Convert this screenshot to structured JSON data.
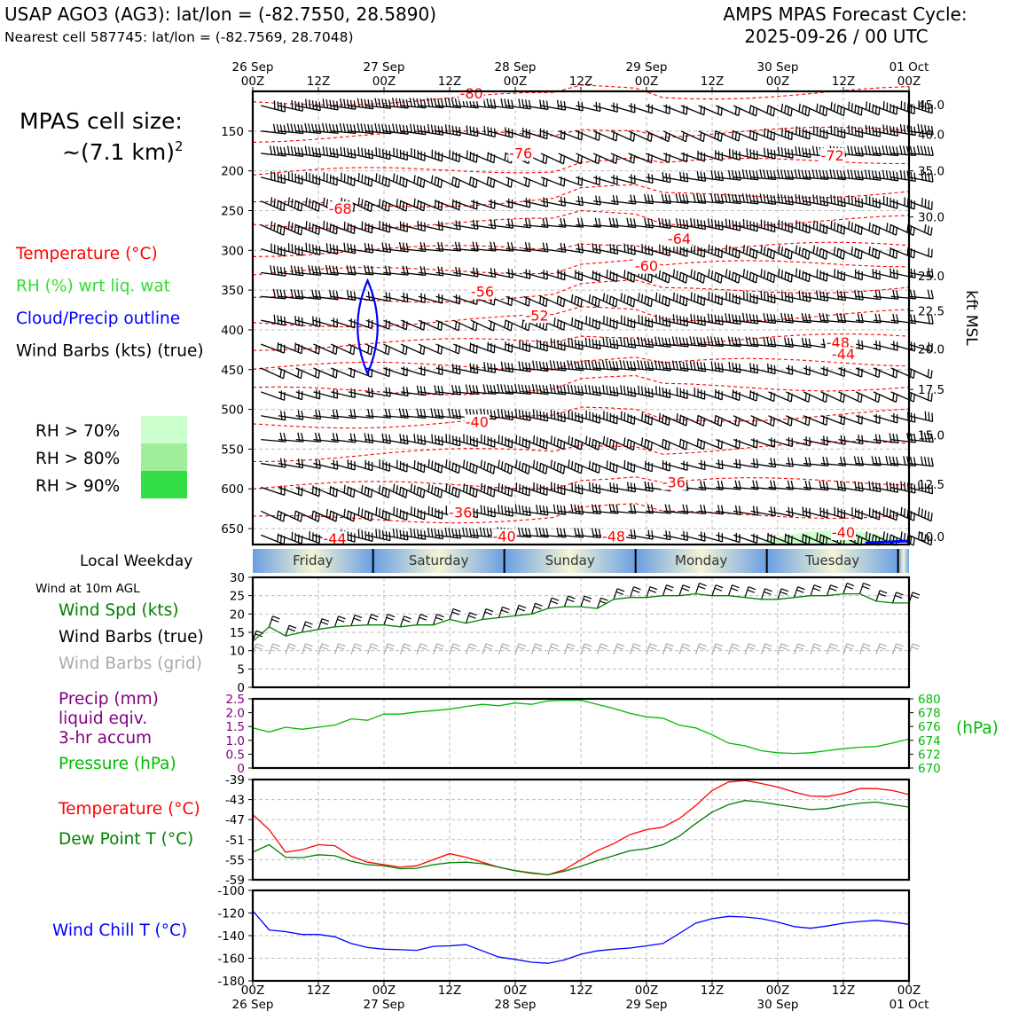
{
  "header": {
    "station_line": "USAP AGO3 (AG3): lat/lon = (-82.7550, 28.5890)",
    "cell_line": "Nearest cell 587745: lat/lon = (-82.7569, 28.7048)",
    "cycle_title": "AMPS MPAS Forecast Cycle:",
    "cycle_time": "2025-09-26 / 00 UTC"
  },
  "left_panel": {
    "cell_size_label": "MPAS cell size:",
    "cell_size_value": "~(7.1 km)",
    "cell_size_exp": "2",
    "legend": [
      {
        "text": "Temperature (°C)",
        "color": "#ff0000"
      },
      {
        "text": "RH (%) wrt liq. wat",
        "color": "#33dd33"
      },
      {
        "text": "Cloud/Precip outline",
        "color": "#0000ff"
      },
      {
        "text": "Wind Barbs (kts) (true)",
        "color": "#000000"
      }
    ],
    "rh_legend": [
      {
        "text": "RH > 70%",
        "color": "#ccffcc"
      },
      {
        "text": "RH > 80%",
        "color": "#a0ee9a"
      },
      {
        "text": "RH > 90%",
        "color": "#33dd44"
      }
    ],
    "weekday_label": "Local Weekday",
    "wind10m_title": "Wind at 10m AGL",
    "wind_legend": [
      {
        "text": "Wind Spd (kts)",
        "color": "#008000"
      },
      {
        "text": "Wind Barbs (true)",
        "color": "#000000"
      },
      {
        "text": "Wind Barbs (grid)",
        "color": "#aaaaaa"
      }
    ],
    "precip_legend": [
      {
        "text": "Precip (mm)",
        "color": "#800080"
      },
      {
        "text": "liquid eqiv.",
        "color": "#800080"
      },
      {
        "text": "3-hr accum",
        "color": "#800080"
      },
      {
        "text": "Pressure (hPa)",
        "color": "#00bb00"
      }
    ],
    "temp_legend": [
      {
        "text": "Temperature (°C)",
        "color": "#ff0000"
      },
      {
        "text": "Dew Point T (°C)",
        "color": "#008000"
      }
    ],
    "chill_legend": [
      {
        "text": "Wind Chill T (°C)",
        "color": "#0000ff"
      }
    ]
  },
  "chart_data": [
    {
      "type": "time-height cross section",
      "x_range_hours": [
        0,
        120
      ],
      "x_ticks": [
        {
          "h": 0,
          "l1": "26 Sep",
          "l2": "00Z"
        },
        {
          "h": 12,
          "l1": "",
          "l2": "12Z"
        },
        {
          "h": 24,
          "l1": "27 Sep",
          "l2": "00Z"
        },
        {
          "h": 36,
          "l1": "",
          "l2": "12Z"
        },
        {
          "h": 48,
          "l1": "28 Sep",
          "l2": "00Z"
        },
        {
          "h": 60,
          "l1": "",
          "l2": "12Z"
        },
        {
          "h": 72,
          "l1": "29 Sep",
          "l2": "00Z"
        },
        {
          "h": 84,
          "l1": "",
          "l2": "12Z"
        },
        {
          "h": 96,
          "l1": "30 Sep",
          "l2": "00Z"
        },
        {
          "h": 108,
          "l1": "",
          "l2": "12Z"
        },
        {
          "h": 120,
          "l1": "01 Oct",
          "l2": "00Z"
        }
      ],
      "y_range_hpa": [
        100,
        670
      ],
      "pressure_ticks": [
        "150",
        "200",
        "250",
        "300",
        "350",
        "400",
        "450",
        "500",
        "550",
        "600",
        "650"
      ],
      "height_axis_label": "kft MSL",
      "height_ticks": [
        {
          "label": "45.0",
          "p": 117
        },
        {
          "label": "40.0",
          "p": 154
        },
        {
          "label": "35.0",
          "p": 200
        },
        {
          "label": "30.0",
          "p": 258
        },
        {
          "label": "25.0",
          "p": 332
        },
        {
          "label": "22.5",
          "p": 376
        },
        {
          "label": "20.0",
          "p": 424
        },
        {
          "label": "17.5",
          "p": 475
        },
        {
          "label": "15.0",
          "p": 532
        },
        {
          "label": "12.5",
          "p": 594
        },
        {
          "label": "10.0",
          "p": 660
        }
      ],
      "temperature_contours_degC": [
        {
          "label": "-80",
          "h": 40,
          "p": 108,
          "color": "#ff0000"
        },
        {
          "label": "-76",
          "h": 49,
          "p": 183,
          "color": "#ff0000"
        },
        {
          "label": "-72",
          "h": 106,
          "p": 186,
          "color": "#ff0000"
        },
        {
          "label": "-68",
          "h": 16,
          "p": 253,
          "color": "#ff0000"
        },
        {
          "label": "-64",
          "h": 78,
          "p": 291,
          "color": "#ff0000"
        },
        {
          "label": "-60",
          "h": 72,
          "p": 325,
          "color": "#ff0000"
        },
        {
          "label": "-56",
          "h": 42,
          "p": 357,
          "color": "#ff0000"
        },
        {
          "label": "-52",
          "h": 52,
          "p": 387,
          "color": "#ff0000"
        },
        {
          "label": "-48",
          "h": 107,
          "p": 421,
          "color": "#ff0000"
        },
        {
          "label": "-44",
          "h": 108,
          "p": 436,
          "color": "#ff0000"
        },
        {
          "label": "-40",
          "h": 41,
          "p": 521,
          "color": "#ff0000"
        },
        {
          "label": "-36",
          "h": 38,
          "p": 635,
          "color": "#ff0000"
        },
        {
          "label": "-36",
          "h": 77,
          "p": 597,
          "color": "#ff0000"
        },
        {
          "label": "-44",
          "h": 15,
          "p": 668,
          "color": "#ff0000"
        },
        {
          "label": "-40",
          "h": 46,
          "p": 665,
          "color": "#ff0000"
        },
        {
          "label": "-48",
          "h": 66,
          "p": 665,
          "color": "#ff0000"
        },
        {
          "label": "-40",
          "h": 108,
          "p": 660,
          "color": "#ff0000"
        }
      ],
      "cloud_outline": {
        "h_center": 21,
        "p_top": 338,
        "p_bottom": 455,
        "color": "#0000ff"
      }
    },
    {
      "type": "weekday strip",
      "days": [
        {
          "label": "Friday",
          "h_start": 0,
          "h_end": 22
        },
        {
          "label": "Saturday",
          "h_start": 22,
          "h_end": 46
        },
        {
          "label": "Sunday",
          "h_start": 46,
          "h_end": 70
        },
        {
          "label": "Monday",
          "h_start": 70,
          "h_end": 94
        },
        {
          "label": "Tuesday",
          "h_start": 94,
          "h_end": 118
        },
        {
          "label": "",
          "h_start": 118,
          "h_end": 120
        }
      ]
    },
    {
      "type": "line",
      "name": "wind10m",
      "ylim": [
        0,
        30
      ],
      "yticks": [
        "0",
        "5",
        "10",
        "15",
        "20",
        "25",
        "30"
      ],
      "x": [
        0,
        3,
        6,
        9,
        12,
        15,
        18,
        21,
        24,
        27,
        30,
        33,
        36,
        39,
        42,
        45,
        48,
        51,
        54,
        57,
        60,
        63,
        66,
        69,
        72,
        75,
        78,
        81,
        84,
        87,
        90,
        93,
        96,
        99,
        102,
        105,
        108,
        111,
        114,
        117,
        120
      ],
      "series": [
        {
          "name": "Wind Spd (kts)",
          "color": "#008000",
          "values": [
            12.5,
            16.5,
            14,
            15,
            15.8,
            16.5,
            16.8,
            17,
            17,
            16.5,
            17,
            17,
            18.5,
            17.5,
            18.5,
            19,
            19.5,
            20,
            21.5,
            22,
            22,
            21.5,
            24,
            24.5,
            24.5,
            25,
            25,
            25.5,
            25,
            25,
            24.5,
            24,
            24,
            24.5,
            25,
            25,
            25.5,
            25.5,
            23.5,
            23,
            23
          ]
        }
      ]
    },
    {
      "type": "line",
      "name": "precip_pressure",
      "y_left": {
        "label": "Precip (mm)",
        "lim": [
          0,
          2.5
        ],
        "ticks": [
          "0",
          "0.5",
          "1.0",
          "1.5",
          "2.0",
          "2.5"
        ]
      },
      "y_right": {
        "label": "(hPa)",
        "lim": [
          670,
          680
        ],
        "ticks": [
          "670",
          "672",
          "674",
          "676",
          "678",
          "680"
        ]
      },
      "x": [
        0,
        3,
        6,
        9,
        12,
        15,
        18,
        21,
        24,
        27,
        30,
        33,
        36,
        39,
        42,
        45,
        48,
        51,
        54,
        57,
        60,
        63,
        66,
        69,
        72,
        75,
        78,
        81,
        84,
        87,
        90,
        93,
        96,
        99,
        102,
        105,
        108,
        111,
        114,
        117,
        120
      ],
      "series": [
        {
          "name": "Pressure (hPa)",
          "color": "#00bb00",
          "values": [
            675.8,
            675.2,
            675.9,
            675.6,
            675.9,
            676.2,
            677.1,
            676.9,
            677.8,
            677.8,
            678.1,
            678.3,
            678.5,
            678.9,
            679.2,
            679,
            679.4,
            679.2,
            679.7,
            679.8,
            679.8,
            679.2,
            678.6,
            677.9,
            677.4,
            677.2,
            676.2,
            675.8,
            674.8,
            673.6,
            673.2,
            672.5,
            672.2,
            672.1,
            672.2,
            672.5,
            672.8,
            673,
            673.1,
            673.6,
            674.2
          ]
        }
      ]
    },
    {
      "type": "line",
      "name": "temperature_dewpoint",
      "ylim": [
        -59,
        -39
      ],
      "yticks": [
        "-59",
        "-55",
        "-51",
        "-47",
        "-43",
        "-39"
      ],
      "x": [
        0,
        3,
        6,
        9,
        12,
        15,
        18,
        21,
        24,
        27,
        30,
        33,
        36,
        39,
        42,
        45,
        48,
        51,
        54,
        57,
        60,
        63,
        66,
        69,
        72,
        75,
        78,
        81,
        84,
        87,
        90,
        93,
        96,
        99,
        102,
        105,
        108,
        111,
        114,
        117,
        120
      ],
      "series": [
        {
          "name": "Temperature (°C)",
          "color": "#ff0000",
          "values": [
            -46,
            -49,
            -53.5,
            -53,
            -52,
            -52.2,
            -54.3,
            -55.5,
            -56,
            -56.5,
            -56.2,
            -55,
            -53.8,
            -54.5,
            -55.5,
            -56.5,
            -57.2,
            -57.7,
            -58,
            -57,
            -55,
            -53.2,
            -51.8,
            -50,
            -49,
            -48.5,
            -46.8,
            -44.2,
            -41.2,
            -39.5,
            -39.2,
            -39.8,
            -40.5,
            -41.5,
            -42.3,
            -42.4,
            -41.8,
            -40.8,
            -40.8,
            -41.2,
            -42
          ]
        },
        {
          "name": "Dew Point T (°C)",
          "color": "#008000",
          "values": [
            -53.5,
            -52,
            -54.5,
            -54.6,
            -54,
            -54.2,
            -55.3,
            -56,
            -56.2,
            -56.8,
            -56.7,
            -56,
            -55.6,
            -55.5,
            -55.8,
            -56.5,
            -57.2,
            -57.6,
            -58,
            -57.3,
            -56.3,
            -55.2,
            -54.2,
            -53.2,
            -52.8,
            -52,
            -50.3,
            -47.8,
            -45.5,
            -44,
            -43.2,
            -43.5,
            -44,
            -44.5,
            -45,
            -44.8,
            -44.2,
            -43.7,
            -43.5,
            -44,
            -44.5
          ]
        }
      ]
    },
    {
      "type": "line",
      "name": "wind_chill",
      "ylim": [
        -180,
        -100
      ],
      "yticks": [
        "-180",
        "-160",
        "-140",
        "-120",
        "-100"
      ],
      "x_ticks_bottom": [
        {
          "h": 0,
          "l1": "00Z",
          "l2": "26 Sep"
        },
        {
          "h": 12,
          "l1": "12Z",
          "l2": ""
        },
        {
          "h": 24,
          "l1": "00Z",
          "l2": "27 Sep"
        },
        {
          "h": 36,
          "l1": "12Z",
          "l2": ""
        },
        {
          "h": 48,
          "l1": "00Z",
          "l2": "28 Sep"
        },
        {
          "h": 60,
          "l1": "12Z",
          "l2": ""
        },
        {
          "h": 72,
          "l1": "00Z",
          "l2": "29 Sep"
        },
        {
          "h": 84,
          "l1": "12Z",
          "l2": ""
        },
        {
          "h": 96,
          "l1": "00Z",
          "l2": "30 Sep"
        },
        {
          "h": 108,
          "l1": "12Z",
          "l2": ""
        },
        {
          "h": 120,
          "l1": "00Z",
          "l2": "01 Oct"
        }
      ],
      "x": [
        0,
        3,
        6,
        9,
        12,
        15,
        18,
        21,
        24,
        27,
        30,
        33,
        36,
        39,
        42,
        45,
        48,
        51,
        54,
        57,
        60,
        63,
        66,
        69,
        72,
        75,
        78,
        81,
        84,
        87,
        90,
        93,
        96,
        99,
        102,
        105,
        108,
        111,
        114,
        117,
        120
      ],
      "series": [
        {
          "name": "Wind Chill T (°C)",
          "color": "#0000ff",
          "values": [
            -118,
            -135,
            -136.5,
            -139,
            -139,
            -141,
            -147,
            -150.5,
            -152,
            -152.5,
            -153,
            -149.5,
            -149,
            -148,
            -153.5,
            -159,
            -161,
            -163.5,
            -164.5,
            -161.5,
            -156.5,
            -153.5,
            -152,
            -151,
            -149,
            -147,
            -138,
            -129,
            -125,
            -123,
            -123.5,
            -125,
            -128,
            -132,
            -133.5,
            -131.5,
            -129,
            -127.5,
            -126.5,
            -128,
            -130
          ]
        }
      ]
    }
  ]
}
